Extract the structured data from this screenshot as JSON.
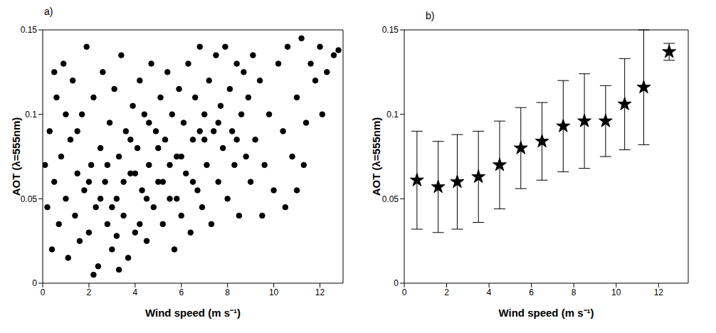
{
  "chart_data": [
    {
      "type": "scatter",
      "title": "a)",
      "x_label": "Wind speed (m s⁻¹)",
      "y_label": "AOT (λ=555nm)",
      "color": "#000000",
      "marker": "circle",
      "xlim": [
        0,
        13
      ],
      "xticks": [
        0,
        2,
        4,
        6,
        8,
        10,
        12
      ],
      "ylim": [
        0,
        0.15
      ],
      "yticks": [
        0,
        0.05,
        0.1,
        0.15
      ],
      "x": [
        0.2,
        0.3,
        0.4,
        0.5,
        0.6,
        0.7,
        0.8,
        0.9,
        1.0,
        1.1,
        1.2,
        1.3,
        1.4,
        1.5,
        1.6,
        1.7,
        1.8,
        1.9,
        2.0,
        2.1,
        2.2,
        2.3,
        2.4,
        2.5,
        2.6,
        2.7,
        2.8,
        2.9,
        3.0,
        3.1,
        3.2,
        3.3,
        3.4,
        3.5,
        3.6,
        3.7,
        3.8,
        3.9,
        4.0,
        4.1,
        4.2,
        4.3,
        4.4,
        4.5,
        4.6,
        4.7,
        4.8,
        4.9,
        5.0,
        5.1,
        5.2,
        5.3,
        5.4,
        5.5,
        5.6,
        5.7,
        5.8,
        5.9,
        6.0,
        6.1,
        6.2,
        6.3,
        6.4,
        6.5,
        6.6,
        6.7,
        6.8,
        6.9,
        7.0,
        7.1,
        7.2,
        7.3,
        7.4,
        7.5,
        7.6,
        7.7,
        7.8,
        7.9,
        8.0,
        8.1,
        8.2,
        8.3,
        8.4,
        8.5,
        8.6,
        8.7,
        8.8,
        8.9,
        9.0,
        9.1,
        9.2,
        9.4,
        9.6,
        9.8,
        10.0,
        10.2,
        10.4,
        10.6,
        10.8,
        11.0,
        11.2,
        11.4,
        11.6,
        11.8,
        12.0,
        12.3,
        12.6,
        12.8,
        1.5,
        2.5,
        3.5,
        4.5,
        5.5,
        6.5,
        3.0,
        4.0,
        5.0,
        6.0,
        7.0,
        2.0,
        3.2,
        4.2,
        5.2,
        3.8,
        4.6,
        2.8,
        5.8,
        6.8,
        7.6,
        8.4,
        11.0,
        10.5,
        9.5,
        11.3,
        12.1,
        0.1,
        0.5,
        1.0,
        2.2,
        3.3
      ],
      "values": [
        0.045,
        0.09,
        0.02,
        0.06,
        0.11,
        0.035,
        0.075,
        0.13,
        0.05,
        0.015,
        0.085,
        0.12,
        0.04,
        0.065,
        0.025,
        0.1,
        0.055,
        0.14,
        0.03,
        0.07,
        0.11,
        0.045,
        0.01,
        0.08,
        0.125,
        0.06,
        0.035,
        0.095,
        0.02,
        0.115,
        0.05,
        0.075,
        0.135,
        0.04,
        0.09,
        0.015,
        0.065,
        0.105,
        0.03,
        0.08,
        0.12,
        0.055,
        0.1,
        0.025,
        0.07,
        0.13,
        0.045,
        0.09,
        0.06,
        0.11,
        0.035,
        0.085,
        0.125,
        0.05,
        0.1,
        0.02,
        0.075,
        0.115,
        0.04,
        0.095,
        0.065,
        0.13,
        0.03,
        0.085,
        0.11,
        0.055,
        0.14,
        0.045,
        0.1,
        0.07,
        0.12,
        0.035,
        0.09,
        0.135,
        0.06,
        0.105,
        0.08,
        0.14,
        0.05,
        0.115,
        0.09,
        0.07,
        0.13,
        0.04,
        0.1,
        0.125,
        0.075,
        0.11,
        0.06,
        0.135,
        0.085,
        0.12,
        0.07,
        0.1,
        0.055,
        0.13,
        0.09,
        0.14,
        0.075,
        0.11,
        0.145,
        0.095,
        0.13,
        0.12,
        0.14,
        0.125,
        0.135,
        0.138,
        0.09,
        0.05,
        0.06,
        0.05,
        0.07,
        0.06,
        0.045,
        0.065,
        0.08,
        0.075,
        0.085,
        0.06,
        0.028,
        0.035,
        0.06,
        0.085,
        0.095,
        0.07,
        0.05,
        0.09,
        0.095,
        0.085,
        0.055,
        0.045,
        0.04,
        0.07,
        0.1,
        0.07,
        0.125,
        0.1,
        0.005,
        0.008
      ]
    },
    {
      "type": "scatter",
      "title": "b)",
      "x_label": "Wind speed (m s⁻¹)",
      "y_label": "AOT (λ=555nm)",
      "color": "#000000",
      "marker": "star",
      "xlim": [
        0,
        13.4
      ],
      "xticks": [
        0,
        2,
        4,
        6,
        8,
        10,
        12
      ],
      "ylim": [
        0,
        0.15
      ],
      "yticks": [
        0,
        0.05,
        0.1,
        0.15
      ],
      "x": [
        0.6,
        1.6,
        2.5,
        3.5,
        4.5,
        5.5,
        6.5,
        7.5,
        8.5,
        9.5,
        10.4,
        11.3,
        12.5
      ],
      "values": [
        0.061,
        0.057,
        0.06,
        0.063,
        0.07,
        0.08,
        0.084,
        0.093,
        0.096,
        0.096,
        0.106,
        0.116,
        0.137
      ],
      "errors": [
        0.029,
        0.027,
        0.028,
        0.027,
        0.026,
        0.024,
        0.023,
        0.027,
        0.028,
        0.021,
        0.027,
        0.034,
        0.005
      ]
    }
  ]
}
